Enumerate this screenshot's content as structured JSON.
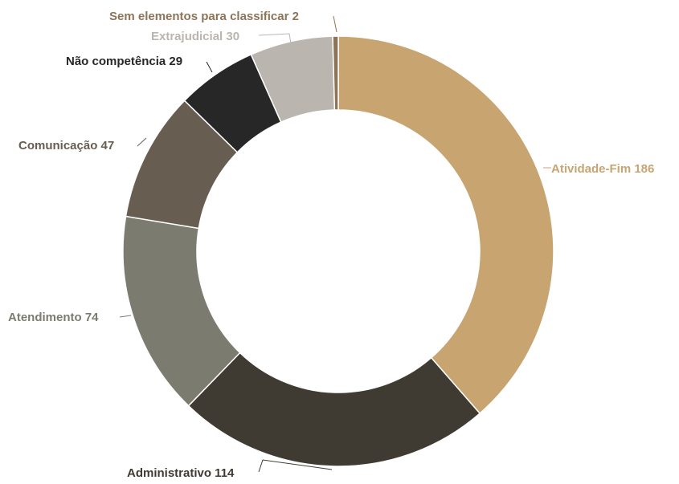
{
  "chart_data": {
    "type": "pie",
    "variant": "donut",
    "title": "",
    "legend": "none",
    "slice_border_color": "#ffffff",
    "slices": [
      {
        "label": "Atividade-Fim",
        "value": 186,
        "text": "Atividade-Fim 186",
        "color": "#C8A470",
        "label_color": "#C8A470"
      },
      {
        "label": "Administrativo",
        "value": 114,
        "text": "Administrativo 114",
        "color": "#3F3B33",
        "label_color": "#3F3B33"
      },
      {
        "label": "Atendimento",
        "value": 74,
        "text": "Atendimento 74",
        "color": "#7C7B70",
        "label_color": "#7C7B70"
      },
      {
        "label": "Comunicação",
        "value": 47,
        "text": "Comunicação 47",
        "color": "#675D51",
        "label_color": "#675D51"
      },
      {
        "label": "Não competência",
        "value": 29,
        "text": "Não competência 29",
        "color": "#272727",
        "label_color": "#272727"
      },
      {
        "label": "Extrajudicial",
        "value": 30,
        "text": "Extrajudicial 30",
        "color": "#BAB6AF",
        "label_color": "#BAB6AF"
      },
      {
        "label": "Sem elementos para classificar",
        "value": 2,
        "text": "Sem elementos para classificar 2",
        "color": "#8C7458",
        "label_color": "#8C7458"
      }
    ]
  }
}
